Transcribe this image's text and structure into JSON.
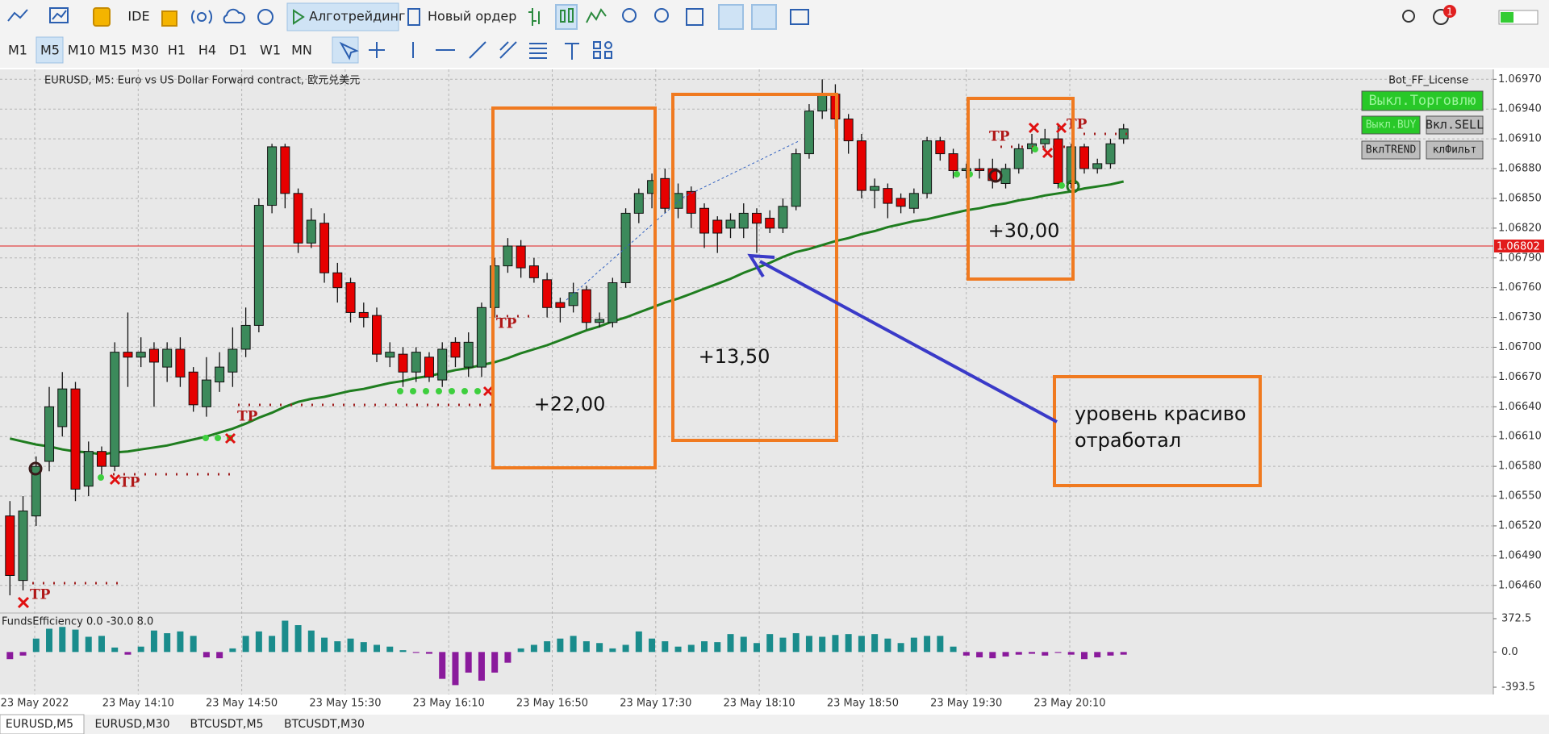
{
  "toolbar": {
    "ide": "IDE",
    "algo": "Алготрейдинг",
    "order": "Новый ордер",
    "badge": "1"
  },
  "timeframes": [
    "M1",
    "M5",
    "M10",
    "M15",
    "M30",
    "H1",
    "H4",
    "D1",
    "W1",
    "MN"
  ],
  "chart": {
    "header": "EURUSD, M5:  Euro vs US Dollar Forward contract, 欧元兑美元",
    "license": "Bot_FF_License",
    "buttons": [
      "Выкл.Торговлю",
      "Выкл.BUY",
      "Вкл.SELL",
      "ВклTREND",
      "клФильт"
    ],
    "bull_color": "#3c8a5b",
    "bear_color": "#e60000",
    "ylim": [
      1.06433,
      1.0698
    ],
    "yticks": [
      {
        "value": 1.0697,
        "label": "1.06970"
      },
      {
        "value": 1.0694,
        "label": "1.06940"
      },
      {
        "value": 1.0691,
        "label": "1.06910"
      },
      {
        "value": 1.0688,
        "label": "1.06880"
      },
      {
        "value": 1.0685,
        "label": "1.06850"
      },
      {
        "value": 1.0682,
        "label": "1.06820"
      },
      {
        "value": 1.0679,
        "label": "1.06790"
      },
      {
        "value": 1.0676,
        "label": "1.06760"
      },
      {
        "value": 1.0673,
        "label": "1.06730"
      },
      {
        "value": 1.067,
        "label": "1.06700"
      },
      {
        "value": 1.0667,
        "label": "1.06670"
      },
      {
        "value": 1.0664,
        "label": "1.06640"
      },
      {
        "value": 1.0661,
        "label": "1.06610"
      },
      {
        "value": 1.0658,
        "label": "1.06580"
      },
      {
        "value": 1.0655,
        "label": "1.06550"
      },
      {
        "value": 1.0652,
        "label": "1.06520"
      },
      {
        "value": 1.0649,
        "label": "1.06490"
      },
      {
        "value": 1.0646,
        "label": "1.06460"
      }
    ],
    "grid": true,
    "current_price": 1.06802,
    "current_color": "#e21b1b",
    "xlabels": [
      "23 May 2022",
      "23 May 14:10",
      "23 May 14:50",
      "23 May 15:30",
      "23 May 16:10",
      "23 May 16:50",
      "23 May 17:30",
      "23 May 18:10",
      "23 May 18:50",
      "23 May 19:30",
      "23 May 20:10"
    ],
    "candles": [
      [
        1.0653,
        1.06545,
        1.0645,
        1.0647
      ],
      [
        1.06465,
        1.0655,
        1.06455,
        1.06535
      ],
      [
        1.0653,
        1.0659,
        1.0652,
        1.0658
      ],
      [
        1.06585,
        1.0666,
        1.06575,
        1.0664
      ],
      [
        1.0662,
        1.06675,
        1.0661,
        1.06658
      ],
      [
        1.06658,
        1.06665,
        1.06545,
        1.06557
      ],
      [
        1.0656,
        1.06605,
        1.0655,
        1.06595
      ],
      [
        1.06595,
        1.066,
        1.0657,
        1.0658
      ],
      [
        1.0658,
        1.06705,
        1.06575,
        1.06695
      ],
      [
        1.06695,
        1.06735,
        1.0666,
        1.0669
      ],
      [
        1.0669,
        1.0671,
        1.0668,
        1.06695
      ],
      [
        1.06698,
        1.06705,
        1.0664,
        1.06685
      ],
      [
        1.0668,
        1.06705,
        1.06665,
        1.06698
      ],
      [
        1.06698,
        1.0671,
        1.0666,
        1.0667
      ],
      [
        1.06675,
        1.0668,
        1.06635,
        1.06642
      ],
      [
        1.0664,
        1.0669,
        1.0663,
        1.06667
      ],
      [
        1.06665,
        1.06695,
        1.06655,
        1.0668
      ],
      [
        1.06675,
        1.0672,
        1.0666,
        1.06698
      ],
      [
        1.06698,
        1.0674,
        1.0669,
        1.06722
      ],
      [
        1.06722,
        1.0685,
        1.06715,
        1.06843
      ],
      [
        1.06843,
        1.06905,
        1.06835,
        1.06902
      ],
      [
        1.06902,
        1.06905,
        1.0684,
        1.06855
      ],
      [
        1.06855,
        1.0686,
        1.06795,
        1.06805
      ],
      [
        1.06805,
        1.0684,
        1.068,
        1.06828
      ],
      [
        1.06825,
        1.06835,
        1.06765,
        1.06775
      ],
      [
        1.06775,
        1.06785,
        1.06745,
        1.0676
      ],
      [
        1.06765,
        1.0677,
        1.06725,
        1.06735
      ],
      [
        1.06735,
        1.06745,
        1.0672,
        1.0673
      ],
      [
        1.06732,
        1.0674,
        1.06685,
        1.06693
      ],
      [
        1.0669,
        1.06705,
        1.0668,
        1.06695
      ],
      [
        1.06693,
        1.067,
        1.0666,
        1.06675
      ],
      [
        1.06675,
        1.067,
        1.06665,
        1.06695
      ],
      [
        1.0669,
        1.06695,
        1.06665,
        1.0667
      ],
      [
        1.06667,
        1.06705,
        1.0666,
        1.06698
      ],
      [
        1.06705,
        1.0671,
        1.0668,
        1.0669
      ],
      [
        1.0668,
        1.06715,
        1.0667,
        1.06705
      ],
      [
        1.0668,
        1.06745,
        1.0667,
        1.0674
      ],
      [
        1.0674,
        1.0679,
        1.0673,
        1.06782
      ],
      [
        1.06782,
        1.0681,
        1.06775,
        1.06802
      ],
      [
        1.06802,
        1.06808,
        1.0677,
        1.0678
      ],
      [
        1.06782,
        1.0679,
        1.06765,
        1.0677
      ],
      [
        1.06768,
        1.06775,
        1.0673,
        1.0674
      ],
      [
        1.06745,
        1.0675,
        1.06725,
        1.0674
      ],
      [
        1.06742,
        1.06765,
        1.06735,
        1.06755
      ],
      [
        1.06758,
        1.06762,
        1.06718,
        1.06725
      ],
      [
        1.06725,
        1.06735,
        1.0672,
        1.06728
      ],
      [
        1.06725,
        1.0677,
        1.0672,
        1.06765
      ],
      [
        1.06765,
        1.0684,
        1.0676,
        1.06835
      ],
      [
        1.06835,
        1.0686,
        1.06825,
        1.06855
      ],
      [
        1.06855,
        1.06875,
        1.0684,
        1.06868
      ],
      [
        1.0687,
        1.0688,
        1.06835,
        1.0684
      ],
      [
        1.0684,
        1.06865,
        1.0683,
        1.06855
      ],
      [
        1.06857,
        1.06862,
        1.0682,
        1.06835
      ],
      [
        1.0684,
        1.06845,
        1.068,
        1.06815
      ],
      [
        1.06828,
        1.06832,
        1.06795,
        1.06815
      ],
      [
        1.0682,
        1.06835,
        1.0681,
        1.06828
      ],
      [
        1.0682,
        1.06845,
        1.0681,
        1.06835
      ],
      [
        1.06835,
        1.0684,
        1.06795,
        1.06825
      ],
      [
        1.0683,
        1.06838,
        1.06815,
        1.0682
      ],
      [
        1.0682,
        1.0685,
        1.06815,
        1.06842
      ],
      [
        1.06842,
        1.069,
        1.06838,
        1.06895
      ],
      [
        1.06895,
        1.06945,
        1.0689,
        1.06938
      ],
      [
        1.06938,
        1.0697,
        1.0693,
        1.06955
      ],
      [
        1.06955,
        1.06965,
        1.0692,
        1.0693
      ],
      [
        1.0693,
        1.06935,
        1.06895,
        1.06908
      ],
      [
        1.06908,
        1.06915,
        1.0685,
        1.06858
      ],
      [
        1.06858,
        1.0687,
        1.0684,
        1.06862
      ],
      [
        1.0686,
        1.06865,
        1.0683,
        1.06845
      ],
      [
        1.0685,
        1.06855,
        1.06835,
        1.06842
      ],
      [
        1.0684,
        1.0686,
        1.06835,
        1.06855
      ],
      [
        1.06855,
        1.06912,
        1.0685,
        1.06908
      ],
      [
        1.06908,
        1.06912,
        1.06888,
        1.06895
      ],
      [
        1.06895,
        1.069,
        1.0687,
        1.06878
      ],
      [
        1.06878,
        1.06885,
        1.0687,
        1.0688
      ],
      [
        1.0688,
        1.0689,
        1.0687,
        1.06878
      ],
      [
        1.0688,
        1.0689,
        1.0686,
        1.06868
      ],
      [
        1.06865,
        1.06885,
        1.0686,
        1.0688
      ],
      [
        1.0688,
        1.06905,
        1.06875,
        1.069
      ],
      [
        1.069,
        1.06915,
        1.06895,
        1.06905
      ],
      [
        1.06905,
        1.0692,
        1.069,
        1.0691
      ],
      [
        1.0691,
        1.06925,
        1.0686,
        1.06865
      ],
      [
        1.06865,
        1.06905,
        1.0686,
        1.06902
      ],
      [
        1.06902,
        1.06905,
        1.06875,
        1.0688
      ],
      [
        1.0688,
        1.0689,
        1.06875,
        1.06885
      ],
      [
        1.06885,
        1.0691,
        1.0688,
        1.06905
      ],
      [
        1.0691,
        1.06925,
        1.06905,
        1.0692
      ]
    ],
    "ma": {
      "color": "#1f7d1f",
      "values": [
        1.06608,
        1.06605,
        1.06602,
        1.066,
        1.06597,
        1.06595,
        1.06594,
        1.06592,
        1.06594,
        1.06595,
        1.06597,
        1.06599,
        1.06601,
        1.06604,
        1.06607,
        1.0661,
        1.06614,
        1.06618,
        1.06623,
        1.06629,
        1.06634,
        1.0664,
        1.06645,
        1.06648,
        1.0665,
        1.06653,
        1.06656,
        1.06658,
        1.06661,
        1.06664,
        1.06666,
        1.06669,
        1.06671,
        1.06674,
        1.06677,
        1.06679,
        1.06682,
        1.06685,
        1.06689,
        1.06694,
        1.06698,
        1.06702,
        1.06707,
        1.06712,
        1.06717,
        1.06721,
        1.06726,
        1.0673,
        1.06735,
        1.0674,
        1.06745,
        1.06749,
        1.06754,
        1.06759,
        1.06764,
        1.06769,
        1.06775,
        1.0678,
        1.06785,
        1.06791,
        1.06796,
        1.06799,
        1.06803,
        1.06807,
        1.0681,
        1.06814,
        1.06817,
        1.06821,
        1.06824,
        1.06827,
        1.06829,
        1.06832,
        1.06835,
        1.06838,
        1.0684,
        1.06843,
        1.06845,
        1.06848,
        1.0685,
        1.06853,
        1.06855,
        1.06857,
        1.0686,
        1.06862,
        1.06864,
        1.06867
      ]
    },
    "trade_labels": [
      "TP",
      "TP",
      "TP",
      "TP",
      "TP",
      "TP"
    ],
    "annotations": [
      "+22,00",
      "+13,50",
      "+30,00",
      "уровень красиво",
      "отработал"
    ]
  },
  "indicator": {
    "header": "FundsEfficiency 0.0 -30.0 8.0",
    "ylim": [
      -393.5,
      372.5
    ],
    "yticks": [
      372.5,
      {
        "value": 0,
        "label": "0.0"
      },
      -393.5
    ],
    "positive_color": "#1a8c8c",
    "negative_color": "#8a1a9c",
    "values": [
      -80,
      -40,
      150,
      260,
      280,
      250,
      170,
      180,
      50,
      -30,
      60,
      240,
      210,
      230,
      180,
      -60,
      -70,
      40,
      180,
      230,
      180,
      350,
      300,
      240,
      160,
      120,
      150,
      110,
      80,
      60,
      20,
      -10,
      -20,
      -300,
      -370,
      -230,
      -320,
      -230,
      -120,
      40,
      80,
      120,
      150,
      180,
      120,
      100,
      40,
      80,
      230,
      150,
      120,
      60,
      80,
      120,
      110,
      200,
      170,
      100,
      200,
      160,
      210,
      180,
      170,
      190,
      200,
      180,
      200,
      150,
      100,
      160,
      180,
      180,
      60,
      -40,
      -60,
      -70,
      -50,
      -30,
      -20,
      -40,
      -10,
      -30,
      -80,
      -60,
      -40,
      -30
    ]
  },
  "tabs": [
    "EURUSD,M5",
    "EURUSD,M30",
    "BTCUSDT,M5",
    "BTCUSDT,M30"
  ]
}
